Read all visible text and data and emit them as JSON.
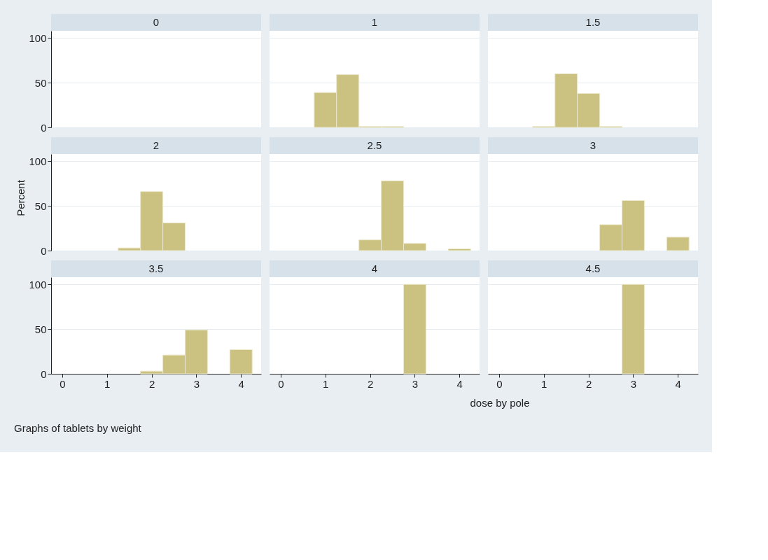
{
  "chart_data": [
    {
      "type": "histogram",
      "title": "0",
      "color": "#cbc281",
      "xlim": [
        -0.25,
        4.45
      ],
      "ylim": [
        0,
        108
      ],
      "xticks": [
        0,
        1,
        2,
        3,
        4
      ],
      "yticks": [
        0,
        50,
        100
      ],
      "grid": "y",
      "tick_labels": "y"
    },
    {
      "type": "histogram",
      "title": "1",
      "bins": [
        0.75,
        1.25,
        1.75,
        2.25,
        2.75,
        3.25,
        3.75,
        4.25
      ],
      "values": [
        39,
        59,
        1,
        1,
        0,
        0,
        0
      ],
      "color": "#cbc281",
      "xlim": [
        -0.25,
        4.45
      ],
      "ylim": [
        0,
        108
      ],
      "xticks": [
        0,
        1,
        2,
        3,
        4
      ],
      "yticks": [
        0,
        50,
        100
      ],
      "grid": "y",
      "tick_labels": false
    },
    {
      "type": "histogram",
      "title": "1.5",
      "bins": [
        0.75,
        1.25,
        1.75,
        2.25,
        2.75,
        3.25,
        3.75,
        4.25
      ],
      "values": [
        1,
        60,
        38,
        1,
        0,
        0,
        0
      ],
      "color": "#cbc281",
      "xlim": [
        -0.25,
        4.45
      ],
      "ylim": [
        0,
        108
      ],
      "xticks": [
        0,
        1,
        2,
        3,
        4
      ],
      "yticks": [
        0,
        50,
        100
      ],
      "grid": "y",
      "tick_labels": false
    },
    {
      "type": "histogram",
      "title": "2",
      "ylabel": "Percent",
      "bins": [
        0.75,
        1.25,
        1.75,
        2.25,
        2.75,
        3.25,
        3.75,
        4.25
      ],
      "values": [
        0,
        3,
        66,
        31,
        0,
        0,
        0
      ],
      "color": "#cbc281",
      "xlim": [
        -0.25,
        4.45
      ],
      "ylim": [
        0,
        108
      ],
      "xticks": [
        0,
        1,
        2,
        3,
        4
      ],
      "yticks": [
        0,
        50,
        100
      ],
      "grid": "y",
      "tick_labels": "y"
    },
    {
      "type": "histogram",
      "title": "2.5",
      "bins": [
        0.75,
        1.25,
        1.75,
        2.25,
        2.75,
        3.25,
        3.75,
        4.25
      ],
      "values": [
        0,
        0,
        12,
        78,
        8,
        0,
        2
      ],
      "color": "#cbc281",
      "xlim": [
        -0.25,
        4.45
      ],
      "ylim": [
        0,
        108
      ],
      "xticks": [
        0,
        1,
        2,
        3,
        4
      ],
      "yticks": [
        0,
        50,
        100
      ],
      "grid": "y",
      "tick_labels": false
    },
    {
      "type": "histogram",
      "title": "3",
      "bins": [
        0.75,
        1.25,
        1.75,
        2.25,
        2.75,
        3.25,
        3.75,
        4.25
      ],
      "values": [
        0,
        0,
        0,
        29,
        56,
        0,
        15
      ],
      "color": "#cbc281",
      "xlim": [
        -0.25,
        4.45
      ],
      "ylim": [
        0,
        108
      ],
      "xticks": [
        0,
        1,
        2,
        3,
        4
      ],
      "yticks": [
        0,
        50,
        100
      ],
      "grid": "y",
      "tick_labels": false
    },
    {
      "type": "histogram",
      "title": "3.5",
      "bins": [
        0.75,
        1.25,
        1.75,
        2.25,
        2.75,
        3.25,
        3.75,
        4.25
      ],
      "values": [
        0,
        0,
        3,
        21,
        49,
        0,
        27
      ],
      "color": "#cbc281",
      "xlim": [
        -0.25,
        4.45
      ],
      "ylim": [
        0,
        108
      ],
      "xticks": [
        0,
        1,
        2,
        3,
        4
      ],
      "yticks": [
        0,
        50,
        100
      ],
      "grid": "y",
      "annotations": [
        "Graphs of tablets by weight"
      ]
    },
    {
      "type": "histogram",
      "title": "4",
      "xlabel": "dose by pole",
      "bins": [
        0.75,
        1.25,
        1.75,
        2.25,
        2.75,
        3.25,
        3.75,
        4.25
      ],
      "values": [
        0,
        0,
        0,
        0,
        100,
        0,
        0
      ],
      "color": "#cbc281",
      "xlim": [
        -0.25,
        4.45
      ],
      "ylim": [
        0,
        108
      ],
      "xticks": [
        0,
        1,
        2,
        3,
        4
      ],
      "yticks": [
        0,
        50,
        100
      ],
      "grid": "y",
      "tick_labels": "x"
    },
    {
      "type": "histogram",
      "title": "4.5",
      "bins": [
        0.75,
        1.25,
        1.75,
        2.25,
        2.75,
        3.25,
        3.75,
        4.25
      ],
      "values": [
        0,
        0,
        0,
        0,
        100,
        0,
        0
      ],
      "color": "#cbc281",
      "xlim": [
        -0.25,
        4.45
      ],
      "ylim": [
        0,
        108
      ],
      "xticks": [
        0,
        1,
        2,
        3,
        4
      ],
      "yticks": [
        0,
        50,
        100
      ],
      "grid": "y",
      "tick_labels": "x"
    }
  ]
}
